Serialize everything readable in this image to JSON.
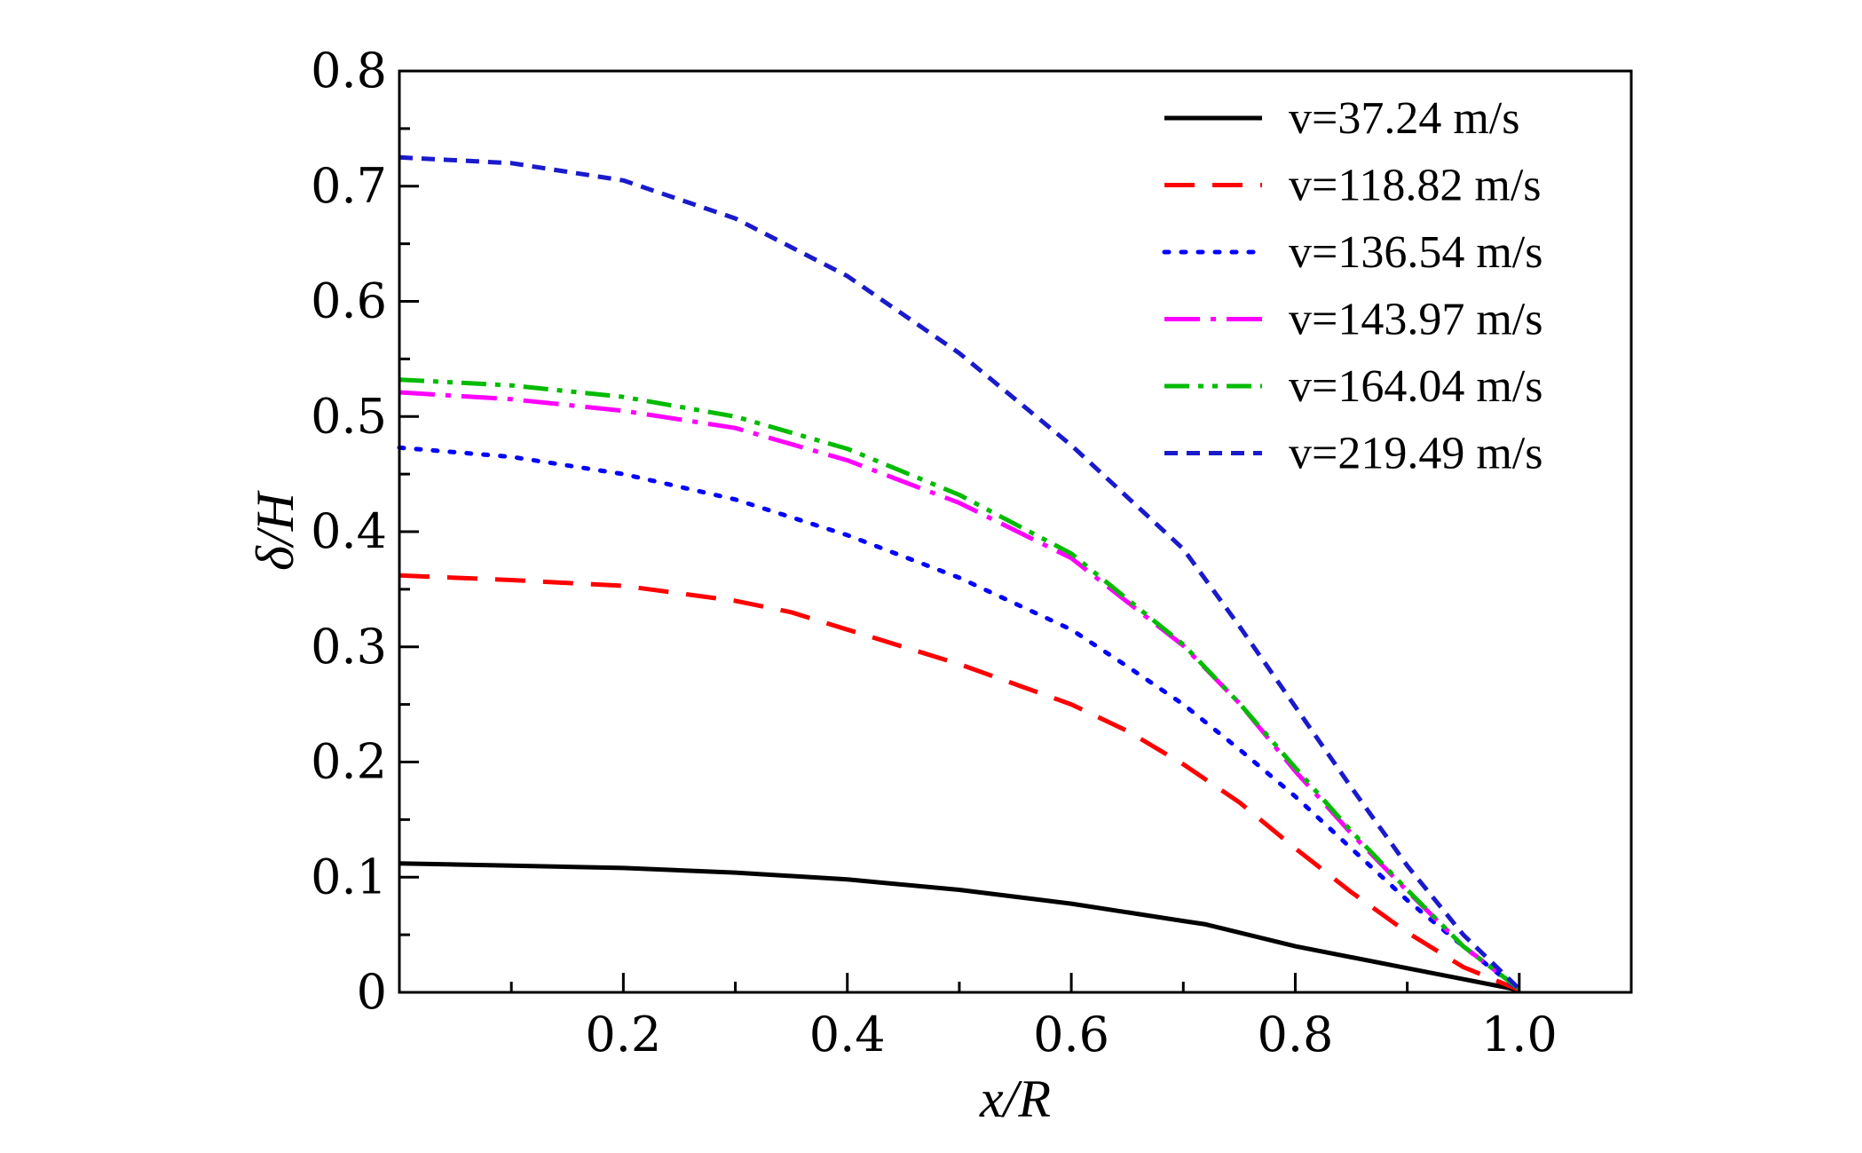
{
  "chart_data": {
    "type": "line",
    "xlabel": "x/R",
    "ylabel": "δ/H",
    "xlim": [
      0,
      1.1
    ],
    "ylim": [
      0,
      0.8
    ],
    "xticks": [
      "0.2",
      "0.4",
      "0.6",
      "0.8",
      "1.0"
    ],
    "yticks": [
      "0",
      "0.1",
      "0.2",
      "0.3",
      "0.4",
      "0.5",
      "0.6",
      "0.7",
      "0.8"
    ],
    "grid": false,
    "legend_position": "top-right",
    "series": [
      {
        "name": "v=37.24 m/s",
        "color": "#000000",
        "style": "solid",
        "x": [
          0,
          0.1,
          0.2,
          0.3,
          0.4,
          0.5,
          0.6,
          0.7,
          0.72,
          0.8,
          0.9,
          1.0
        ],
        "y": [
          0.112,
          0.11,
          0.108,
          0.104,
          0.098,
          0.089,
          0.077,
          0.062,
          0.059,
          0.04,
          0.021,
          0.002
        ]
      },
      {
        "name": "v=118.82 m/s",
        "color": "#ff0000",
        "style": "dashed",
        "x": [
          0,
          0.1,
          0.2,
          0.3,
          0.35,
          0.4,
          0.5,
          0.6,
          0.65,
          0.7,
          0.75,
          0.8,
          0.85,
          0.9,
          0.95,
          1.0
        ],
        "y": [
          0.362,
          0.358,
          0.353,
          0.34,
          0.33,
          0.315,
          0.285,
          0.25,
          0.227,
          0.198,
          0.165,
          0.125,
          0.087,
          0.052,
          0.022,
          0.002
        ]
      },
      {
        "name": "v=136.54 m/s",
        "color": "#0000ff",
        "style": "dotted",
        "x": [
          0,
          0.1,
          0.2,
          0.3,
          0.4,
          0.5,
          0.6,
          0.65,
          0.7,
          0.75,
          0.8,
          0.85,
          0.9,
          0.95,
          1.0
        ],
        "y": [
          0.473,
          0.465,
          0.45,
          0.428,
          0.397,
          0.36,
          0.315,
          0.283,
          0.25,
          0.211,
          0.17,
          0.125,
          0.08,
          0.04,
          0.002
        ]
      },
      {
        "name": "v=143.97 m/s",
        "color": "#ff00ff",
        "style": "dashdot",
        "x": [
          0,
          0.1,
          0.2,
          0.3,
          0.4,
          0.5,
          0.6,
          0.7,
          0.75,
          0.8,
          0.85,
          0.9,
          0.95,
          1.0
        ],
        "y": [
          0.521,
          0.515,
          0.505,
          0.49,
          0.462,
          0.425,
          0.377,
          0.301,
          0.251,
          0.192,
          0.138,
          0.088,
          0.04,
          0.003
        ]
      },
      {
        "name": "v=164.04 m/s",
        "color": "#00bb00",
        "style": "dashdotdot",
        "x": [
          0,
          0.1,
          0.2,
          0.3,
          0.4,
          0.5,
          0.6,
          0.7,
          0.75,
          0.8,
          0.85,
          0.9,
          0.95,
          1.0
        ],
        "y": [
          0.532,
          0.527,
          0.517,
          0.5,
          0.472,
          0.432,
          0.381,
          0.302,
          0.251,
          0.195,
          0.14,
          0.089,
          0.04,
          0.003
        ]
      },
      {
        "name": "v=219.49 m/s",
        "color": "#1a1acc",
        "style": "shortdash",
        "x": [
          0,
          0.1,
          0.2,
          0.3,
          0.4,
          0.5,
          0.6,
          0.7,
          0.75,
          0.8,
          0.85,
          0.9,
          0.95,
          1.0
        ],
        "y": [
          0.725,
          0.72,
          0.705,
          0.672,
          0.622,
          0.555,
          0.475,
          0.385,
          0.318,
          0.248,
          0.178,
          0.11,
          0.05,
          0.003
        ]
      }
    ]
  }
}
